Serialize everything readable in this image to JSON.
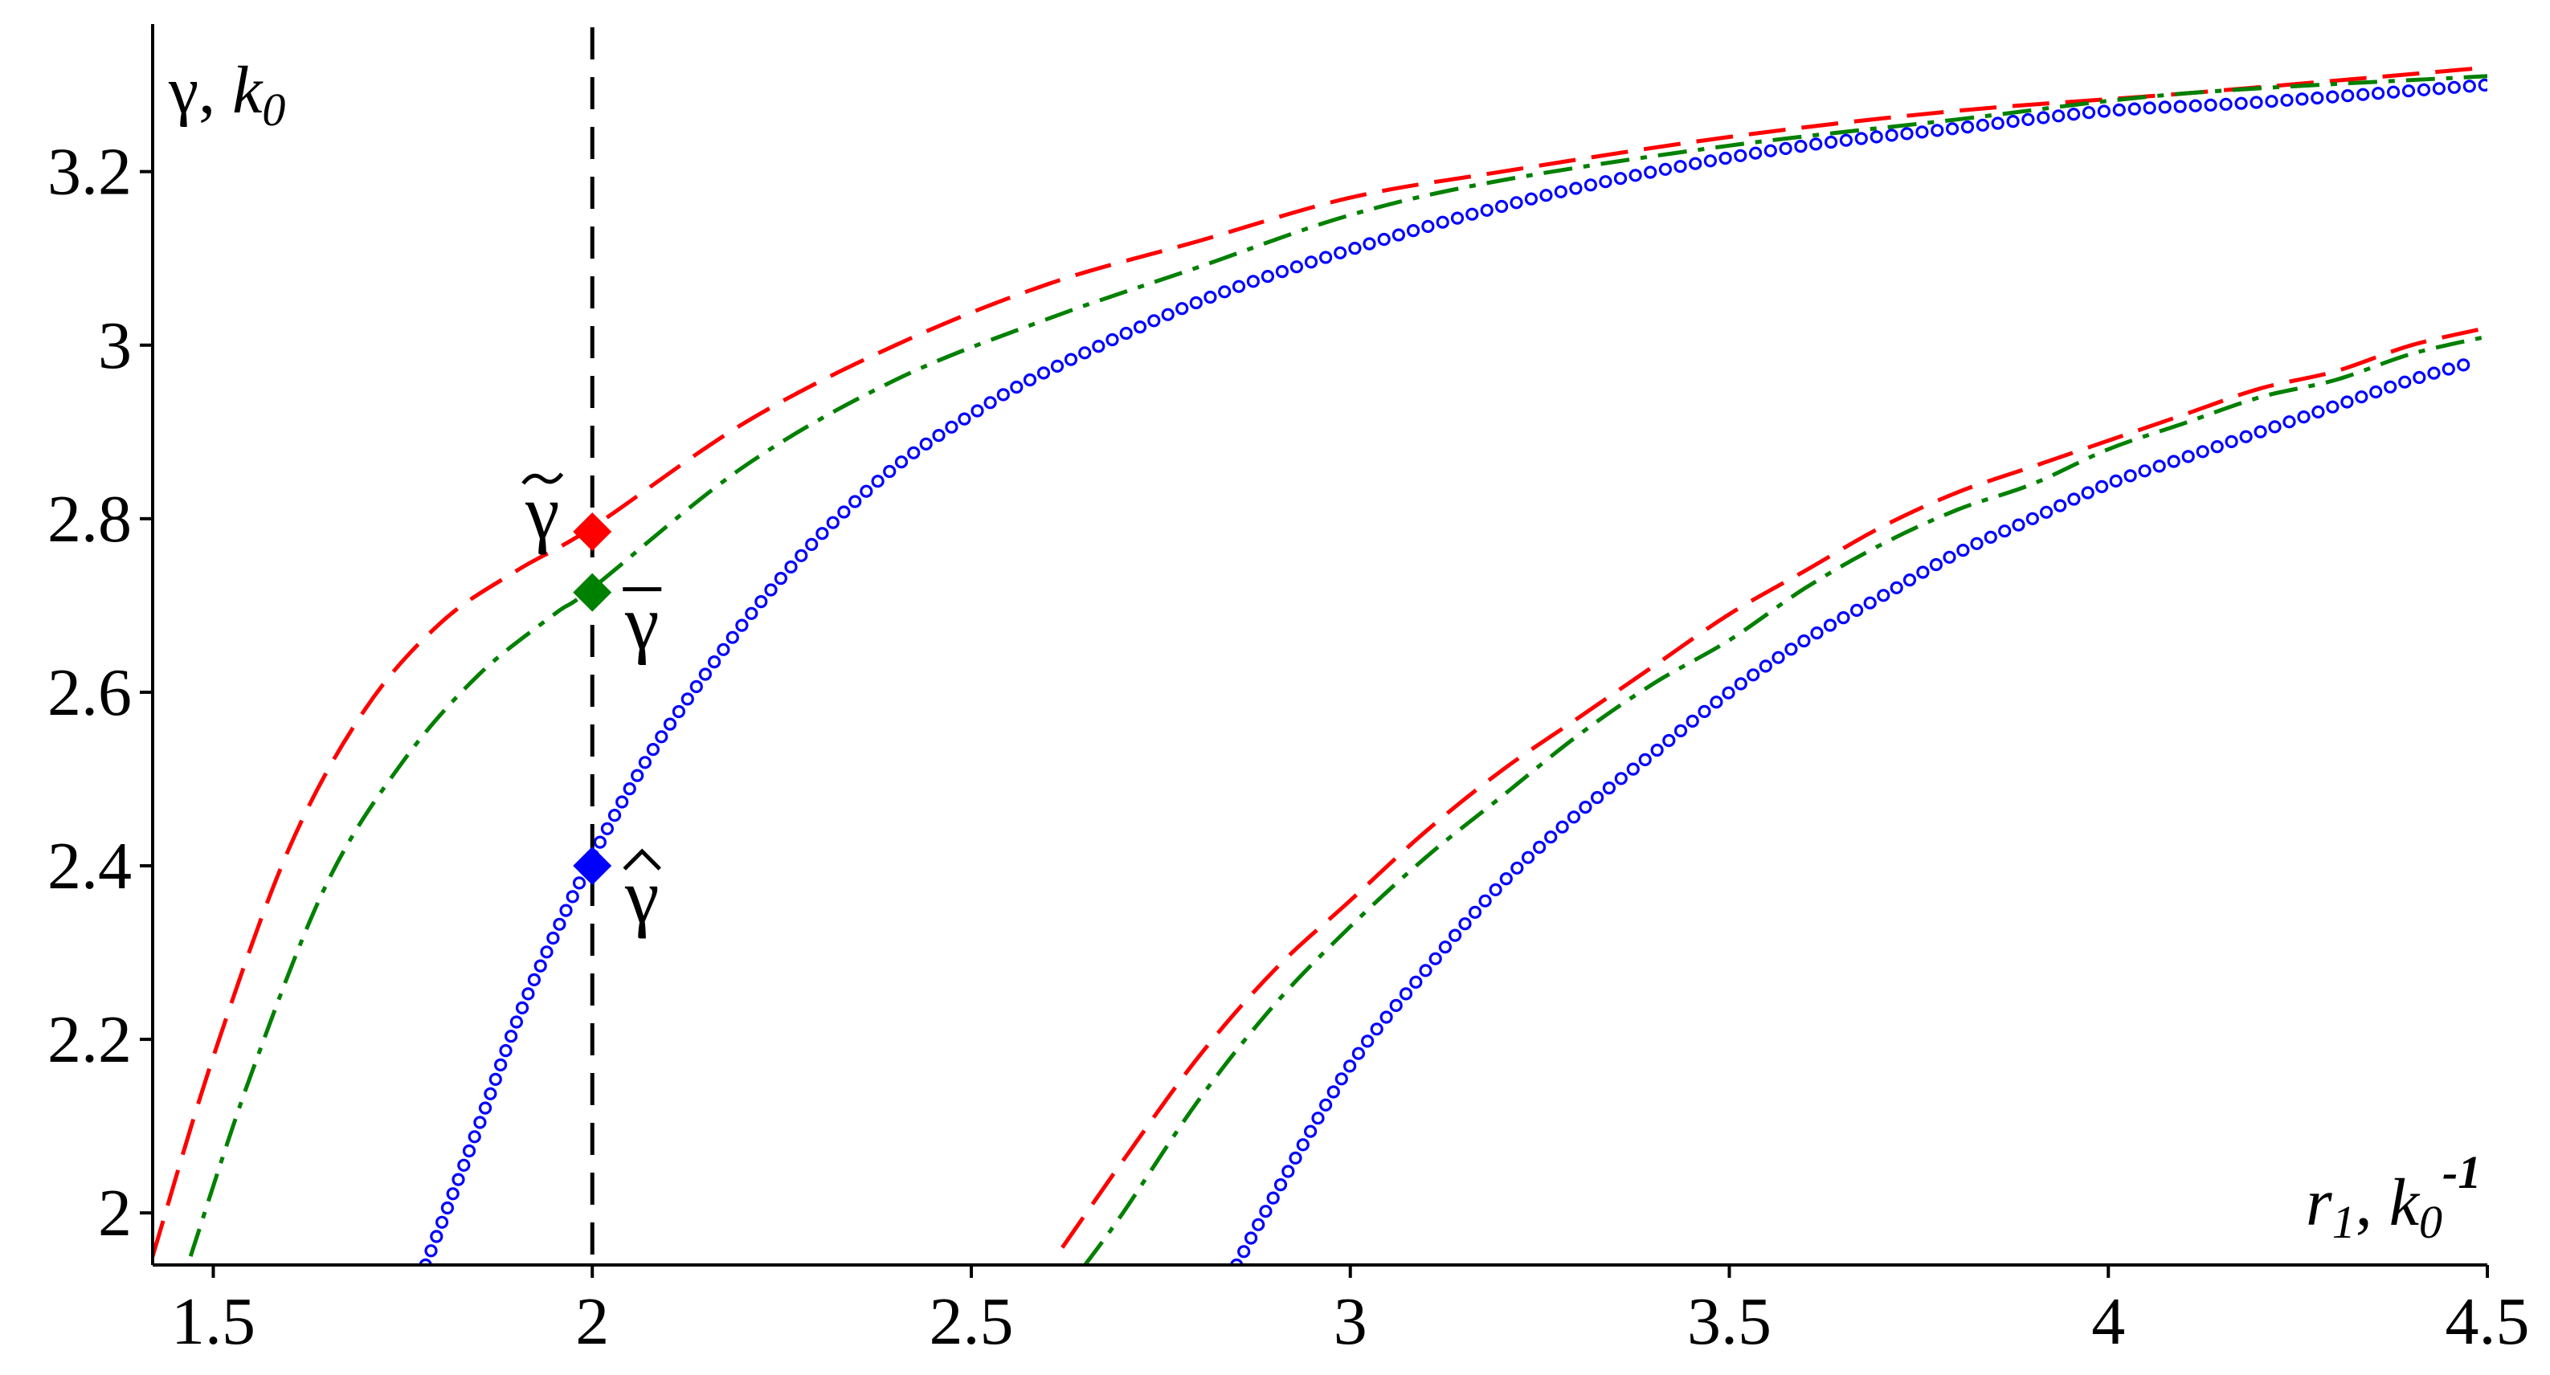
{
  "chart_data": {
    "type": "line",
    "title": "",
    "xlabel": {
      "main": "r",
      "sub": "1",
      "sep": ", ",
      "unit": "k",
      "unit_sub": "0",
      "unit_sup": "-1"
    },
    "ylabel": {
      "main": "γ",
      "sep": ", ",
      "unit": "k",
      "unit_sub": "0"
    },
    "xlim": [
      1.42,
      4.5
    ],
    "ylim": [
      1.94,
      3.37
    ],
    "xticks": [
      1.5,
      2,
      2.5,
      3,
      3.5,
      4,
      4.5
    ],
    "xtick_labels": [
      "1.5",
      "2",
      "2.5",
      "3",
      "3.5",
      "4",
      "4.5"
    ],
    "yticks": [
      2,
      2.2,
      2.4,
      2.6,
      2.8,
      3,
      3.2
    ],
    "ytick_labels": [
      "2",
      "2.2",
      "2.4",
      "2.6",
      "2.8",
      "3",
      "3.2"
    ],
    "vertical_line": {
      "x": 2,
      "style": "dashed",
      "color": "#000000"
    },
    "series": [
      {
        "color": "#ff0000",
        "style": "dashed",
        "x": [
          1.42,
          1.5,
          1.6,
          1.7,
          1.8,
          1.9,
          2.0,
          2.2,
          2.4,
          2.6,
          2.8,
          3.0,
          3.2,
          3.5,
          3.8,
          4.1,
          4.5
        ],
        "y": [
          1.95,
          2.18,
          2.42,
          2.58,
          2.68,
          2.74,
          2.79,
          2.91,
          3.0,
          3.07,
          3.12,
          3.17,
          3.2,
          3.24,
          3.27,
          3.29,
          3.32
        ]
      },
      {
        "color": "#008000",
        "style": "dashdot",
        "x": [
          1.47,
          1.55,
          1.65,
          1.75,
          1.85,
          1.95,
          2.0,
          2.2,
          2.4,
          2.6,
          2.8,
          3.0,
          3.2,
          3.5,
          3.8,
          4.1,
          4.5
        ],
        "y": [
          1.95,
          2.16,
          2.38,
          2.52,
          2.62,
          2.69,
          2.72,
          2.86,
          2.96,
          3.03,
          3.09,
          3.15,
          3.19,
          3.23,
          3.26,
          3.29,
          3.31
        ]
      },
      {
        "color": "#0000ff",
        "style": "circles",
        "x": [
          1.78,
          1.85,
          1.9,
          1.95,
          2.0,
          2.05,
          2.1,
          2.2,
          2.3,
          2.4,
          2.5,
          2.6,
          2.8,
          3.0,
          3.2,
          3.4,
          3.6,
          3.8,
          4.0,
          4.2,
          4.5
        ],
        "y": [
          1.94,
          2.1,
          2.22,
          2.32,
          2.41,
          2.49,
          2.56,
          2.68,
          2.78,
          2.86,
          2.92,
          2.97,
          3.05,
          3.11,
          3.16,
          3.2,
          3.23,
          3.25,
          3.27,
          3.28,
          3.3
        ]
      },
      {
        "color": "#ff0000",
        "style": "dashed",
        "x": [
          2.62,
          2.7,
          2.8,
          2.9,
          3.0,
          3.1,
          3.2,
          3.3,
          3.4,
          3.5,
          3.6,
          3.7,
          3.8,
          3.9,
          4.0,
          4.1,
          4.2,
          4.3,
          4.4,
          4.5
        ],
        "y": [
          1.96,
          2.06,
          2.18,
          2.28,
          2.36,
          2.44,
          2.51,
          2.57,
          2.63,
          2.69,
          2.74,
          2.79,
          2.83,
          2.86,
          2.89,
          2.92,
          2.95,
          2.97,
          3.0,
          3.02
        ]
      },
      {
        "color": "#008000",
        "style": "dashdot",
        "x": [
          2.65,
          2.7,
          2.8,
          2.9,
          3.0,
          3.1,
          3.2,
          3.3,
          3.4,
          3.5,
          3.6,
          3.7,
          3.8,
          3.9,
          4.0,
          4.1,
          4.2,
          4.3,
          4.4,
          4.5
        ],
        "y": [
          1.94,
          2.0,
          2.13,
          2.24,
          2.33,
          2.41,
          2.48,
          2.55,
          2.61,
          2.66,
          2.72,
          2.77,
          2.81,
          2.84,
          2.88,
          2.91,
          2.94,
          2.96,
          2.99,
          3.01
        ]
      },
      {
        "color": "#0000ff",
        "style": "circles",
        "x": [
          2.85,
          2.9,
          3.0,
          3.1,
          3.2,
          3.3,
          3.4,
          3.5,
          3.6,
          3.7,
          3.8,
          3.9,
          4.0,
          4.1,
          4.2,
          4.3,
          4.4,
          4.48
        ],
        "y": [
          1.94,
          2.02,
          2.17,
          2.28,
          2.38,
          2.46,
          2.53,
          2.6,
          2.66,
          2.71,
          2.76,
          2.8,
          2.84,
          2.87,
          2.9,
          2.93,
          2.96,
          2.98
        ]
      }
    ],
    "markers": [
      {
        "x": 2,
        "y": 2.785,
        "color": "#ff0000",
        "label": "γ",
        "accent": "tilde",
        "label_pos": "left"
      },
      {
        "x": 2,
        "y": 2.715,
        "color": "#008000",
        "label": "γ",
        "accent": "bar",
        "label_pos": "right"
      },
      {
        "x": 2,
        "y": 2.4,
        "color": "#0000ff",
        "label": "γ",
        "accent": "hat",
        "label_pos": "right"
      }
    ],
    "grid": false,
    "legend": "none"
  }
}
